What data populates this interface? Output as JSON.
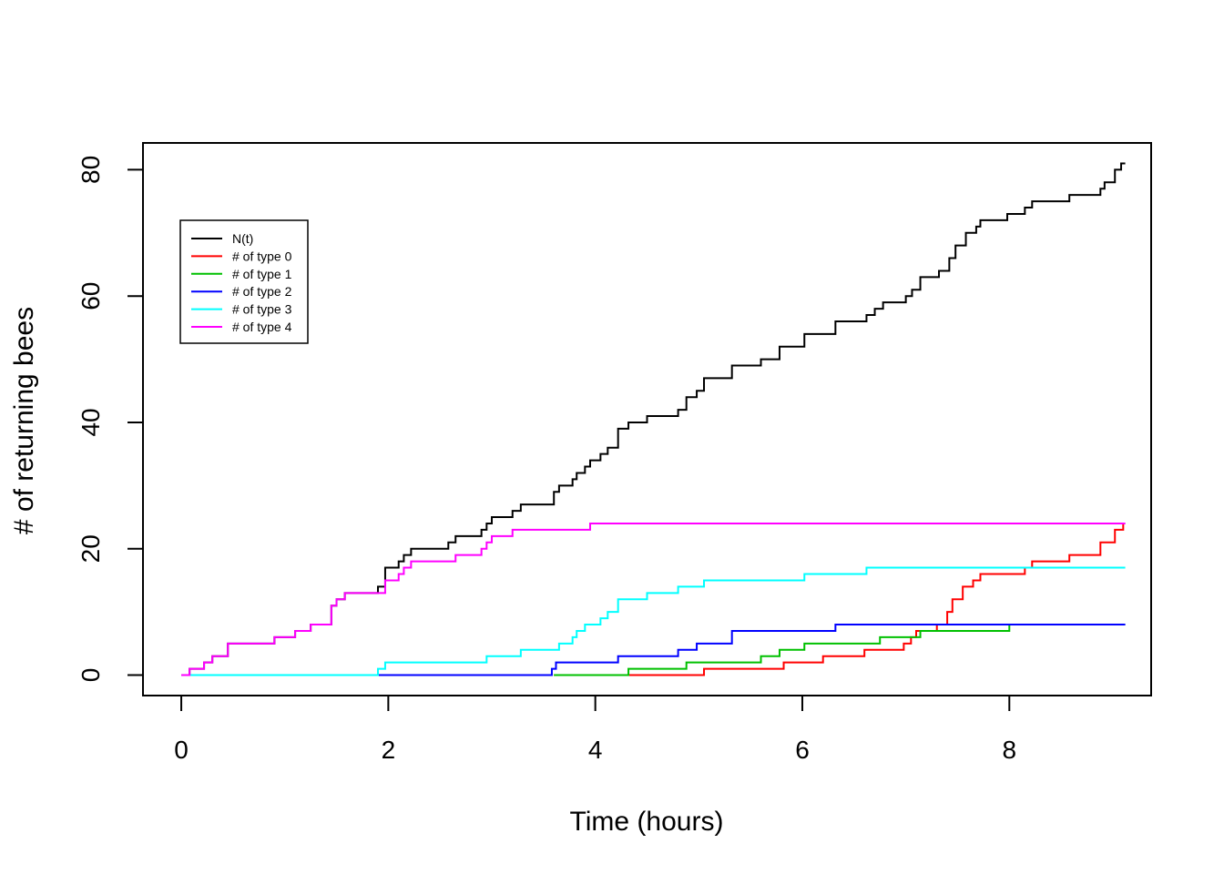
{
  "chart_data": {
    "type": "line",
    "step": true,
    "title": "",
    "xlabel": "Time (hours)",
    "ylabel": "# of returning bees",
    "xlim": [
      -0.37,
      9.37
    ],
    "ylim": [
      -3.24,
      84.24
    ],
    "xticks": [
      0,
      2,
      4,
      6,
      8
    ],
    "yticks": [
      0,
      20,
      40,
      60,
      80
    ],
    "xtick_labels": [
      "0",
      "2",
      "4",
      "6",
      "8"
    ],
    "ytick_labels": [
      "0",
      "20",
      "40",
      "60",
      "80"
    ],
    "grid": false,
    "legend": {
      "position": "upper-left"
    },
    "series": [
      {
        "name": "N(t)",
        "color": "#000000",
        "points": [
          [
            0,
            0
          ],
          [
            0.08,
            1
          ],
          [
            0.22,
            2
          ],
          [
            0.3,
            3
          ],
          [
            0.45,
            5
          ],
          [
            0.9,
            6
          ],
          [
            1.1,
            7
          ],
          [
            1.25,
            8
          ],
          [
            1.45,
            11
          ],
          [
            1.5,
            12
          ],
          [
            1.58,
            13
          ],
          [
            1.9,
            14
          ],
          [
            1.97,
            17
          ],
          [
            2.1,
            18
          ],
          [
            2.15,
            19
          ],
          [
            2.22,
            20
          ],
          [
            2.58,
            21
          ],
          [
            2.65,
            22
          ],
          [
            2.9,
            23
          ],
          [
            2.95,
            24
          ],
          [
            3.0,
            25
          ],
          [
            3.2,
            26
          ],
          [
            3.28,
            27
          ],
          [
            3.6,
            29
          ],
          [
            3.65,
            30
          ],
          [
            3.78,
            31
          ],
          [
            3.82,
            32
          ],
          [
            3.9,
            33
          ],
          [
            3.95,
            34
          ],
          [
            4.05,
            35
          ],
          [
            4.12,
            36
          ],
          [
            4.22,
            39
          ],
          [
            4.32,
            40
          ],
          [
            4.5,
            41
          ],
          [
            4.8,
            42
          ],
          [
            4.88,
            44
          ],
          [
            4.98,
            45
          ],
          [
            5.05,
            47
          ],
          [
            5.32,
            49
          ],
          [
            5.6,
            50
          ],
          [
            5.78,
            52
          ],
          [
            6.02,
            54
          ],
          [
            6.32,
            56
          ],
          [
            6.62,
            57
          ],
          [
            6.7,
            58
          ],
          [
            6.78,
            59
          ],
          [
            7.0,
            60
          ],
          [
            7.06,
            61
          ],
          [
            7.14,
            63
          ],
          [
            7.32,
            64
          ],
          [
            7.42,
            66
          ],
          [
            7.48,
            68
          ],
          [
            7.58,
            70
          ],
          [
            7.68,
            71
          ],
          [
            7.72,
            72
          ],
          [
            7.98,
            73
          ],
          [
            8.15,
            74
          ],
          [
            8.22,
            75
          ],
          [
            8.58,
            76
          ],
          [
            8.88,
            77
          ],
          [
            8.92,
            78
          ],
          [
            9.02,
            80
          ],
          [
            9.08,
            81
          ],
          [
            9.12,
            81
          ]
        ]
      },
      {
        "name": "# of type 0",
        "color": "#ff0000",
        "points": [
          [
            3.6,
            0
          ],
          [
            5.05,
            1
          ],
          [
            5.82,
            2
          ],
          [
            6.2,
            3
          ],
          [
            6.6,
            4
          ],
          [
            6.98,
            5
          ],
          [
            7.05,
            6
          ],
          [
            7.1,
            7
          ],
          [
            7.3,
            8
          ],
          [
            7.4,
            10
          ],
          [
            7.45,
            12
          ],
          [
            7.55,
            14
          ],
          [
            7.65,
            15
          ],
          [
            7.72,
            16
          ],
          [
            8.15,
            17
          ],
          [
            8.22,
            18
          ],
          [
            8.58,
            19
          ],
          [
            8.88,
            21
          ],
          [
            9.02,
            23
          ],
          [
            9.1,
            24
          ],
          [
            9.12,
            24
          ]
        ]
      },
      {
        "name": "# of type 1",
        "color": "#00c000",
        "points": [
          [
            3.6,
            0
          ],
          [
            4.32,
            1
          ],
          [
            4.88,
            2
          ],
          [
            5.6,
            3
          ],
          [
            5.78,
            4
          ],
          [
            6.02,
            5
          ],
          [
            6.75,
            6
          ],
          [
            7.14,
            7
          ],
          [
            8.0,
            8
          ],
          [
            9.12,
            8
          ]
        ]
      },
      {
        "name": "# of type 2",
        "color": "#0000ff",
        "points": [
          [
            0,
            0
          ],
          [
            3.58,
            1
          ],
          [
            3.62,
            2
          ],
          [
            4.22,
            3
          ],
          [
            4.8,
            4
          ],
          [
            4.98,
            5
          ],
          [
            5.32,
            7
          ],
          [
            6.32,
            8
          ],
          [
            9.12,
            8
          ]
        ]
      },
      {
        "name": "# of type 3",
        "color": "#00ffff",
        "points": [
          [
            0,
            0
          ],
          [
            1.9,
            1
          ],
          [
            1.97,
            2
          ],
          [
            2.95,
            3
          ],
          [
            3.28,
            4
          ],
          [
            3.65,
            5
          ],
          [
            3.78,
            6
          ],
          [
            3.82,
            7
          ],
          [
            3.9,
            8
          ],
          [
            4.05,
            9
          ],
          [
            4.12,
            10
          ],
          [
            4.22,
            12
          ],
          [
            4.5,
            13
          ],
          [
            4.8,
            14
          ],
          [
            5.05,
            15
          ],
          [
            6.02,
            16
          ],
          [
            6.62,
            17
          ],
          [
            9.12,
            17
          ]
        ]
      },
      {
        "name": "# of type 4",
        "color": "#ff00ff",
        "points": [
          [
            0,
            0
          ],
          [
            0.08,
            1
          ],
          [
            0.22,
            2
          ],
          [
            0.3,
            3
          ],
          [
            0.45,
            5
          ],
          [
            0.9,
            6
          ],
          [
            1.1,
            7
          ],
          [
            1.25,
            8
          ],
          [
            1.45,
            11
          ],
          [
            1.5,
            12
          ],
          [
            1.58,
            13
          ],
          [
            1.97,
            15
          ],
          [
            2.1,
            16
          ],
          [
            2.15,
            17
          ],
          [
            2.22,
            18
          ],
          [
            2.65,
            19
          ],
          [
            2.9,
            20
          ],
          [
            2.95,
            21
          ],
          [
            3.0,
            22
          ],
          [
            3.2,
            23
          ],
          [
            3.95,
            24
          ],
          [
            9.12,
            24
          ]
        ]
      }
    ]
  }
}
